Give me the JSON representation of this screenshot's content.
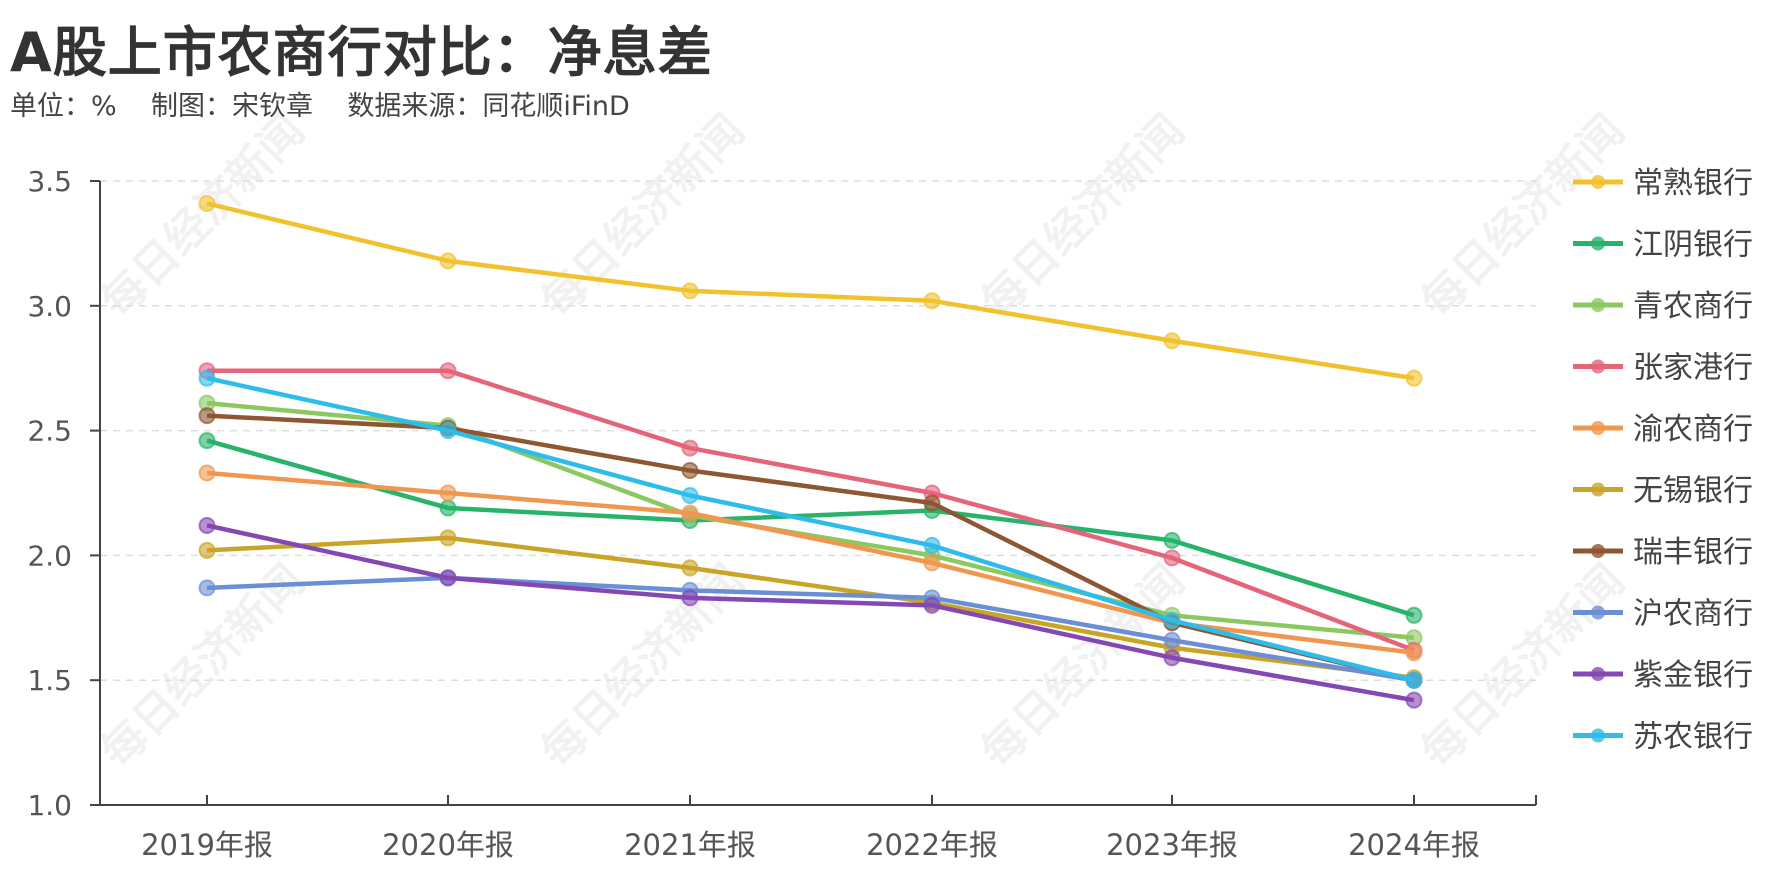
{
  "title": "A股上市农商行对比：净息差",
  "subtitle": "单位：%    制图：宋钦章    数据来源：同花顺iFinD",
  "watermark": "每日经济新闻",
  "chart_data": {
    "type": "line",
    "title": "A股上市农商行对比：净息差",
    "ylabel": "",
    "xlabel": "",
    "ylim": [
      1.0,
      3.5
    ],
    "yticks": [
      "1.0",
      "1.5",
      "2.0",
      "2.5",
      "3.0",
      "3.5"
    ],
    "grid": true,
    "legend_position": "right",
    "categories": [
      "2019年报",
      "2020年报",
      "2021年报",
      "2022年报",
      "2023年报",
      "2024年报"
    ],
    "series": [
      {
        "name": "常熟银行",
        "color": "#F2C12E",
        "values": [
          3.41,
          3.18,
          3.06,
          3.02,
          2.86,
          2.71
        ]
      },
      {
        "name": "江阴银行",
        "color": "#27B36A",
        "values": [
          2.46,
          2.19,
          2.14,
          2.18,
          2.06,
          1.76
        ]
      },
      {
        "name": "青农商行",
        "color": "#8CC860",
        "values": [
          2.61,
          2.52,
          2.16,
          2.0,
          1.76,
          1.67
        ]
      },
      {
        "name": "张家港行",
        "color": "#E5647A",
        "values": [
          2.74,
          2.74,
          2.43,
          2.25,
          1.99,
          1.62
        ]
      },
      {
        "name": "渝农商行",
        "color": "#F0964E",
        "values": [
          2.33,
          2.25,
          2.17,
          1.97,
          1.73,
          1.61
        ]
      },
      {
        "name": "无锡银行",
        "color": "#C9A426",
        "values": [
          2.02,
          2.07,
          1.95,
          1.81,
          1.63,
          1.51
        ]
      },
      {
        "name": "瑞丰银行",
        "color": "#8E5631",
        "values": [
          2.56,
          2.51,
          2.34,
          2.21,
          1.73,
          1.5
        ]
      },
      {
        "name": "沪农商行",
        "color": "#6A8FD4",
        "values": [
          1.87,
          1.91,
          1.86,
          1.83,
          1.66,
          1.5
        ]
      },
      {
        "name": "紫金银行",
        "color": "#8448B4",
        "values": [
          2.12,
          1.91,
          1.83,
          1.8,
          1.59,
          1.42
        ]
      },
      {
        "name": "苏农银行",
        "color": "#2EBCEB",
        "values": [
          2.71,
          2.5,
          2.24,
          2.04,
          1.74,
          1.5
        ]
      }
    ]
  }
}
